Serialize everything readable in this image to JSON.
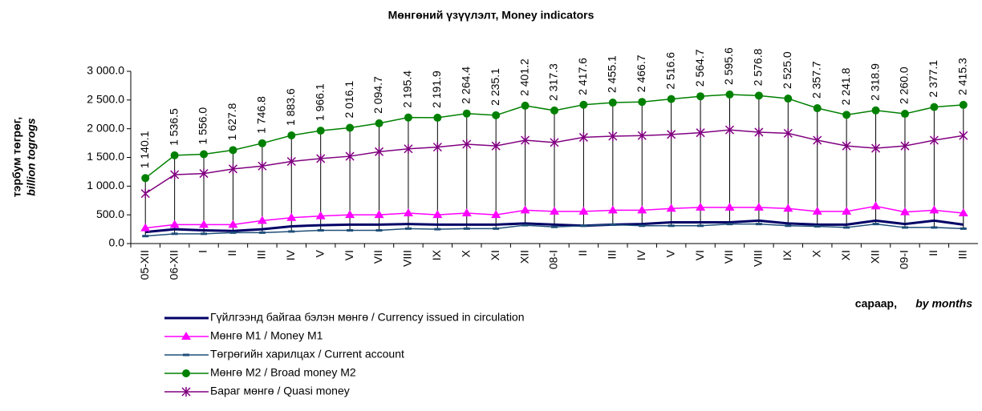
{
  "chart_data": {
    "type": "line",
    "title": "Мөнгөний үзүүлэлт, Money indicators",
    "y_label": "тэрбум төгрөг,",
    "y_label_2": "billion togrogs",
    "x_label": "сараар,",
    "x_label_2": "by months",
    "categories": [
      "05-XII",
      "06-XII",
      "I",
      "II",
      "III",
      "IV",
      "V",
      "VI",
      "VII",
      "VIII",
      "IX",
      "X",
      "XI",
      "XII",
      "08-I",
      "II",
      "III",
      "IV",
      "V",
      "VI",
      "VII",
      "VIII",
      "IX",
      "X",
      "XI",
      "XII",
      "09-I",
      "II",
      "III"
    ],
    "ylim": [
      0,
      3000
    ],
    "yticks": [
      {
        "value": 0,
        "label": "0.0"
      },
      {
        "value": 500,
        "label": "500.0"
      },
      {
        "value": 1000,
        "label": "1 000.0"
      },
      {
        "value": 1500,
        "label": "1 500.0"
      },
      {
        "value": 2000,
        "label": "2 000.0"
      },
      {
        "value": 2500,
        "label": "2 500.0"
      },
      {
        "value": 3000,
        "label": "3 000.0"
      }
    ],
    "series": [
      {
        "name": "Гүйлгээнд   байгаа бэлэн мөнгө / Currency issued  in circulation",
        "color": "#000066",
        "marker": "none",
        "values": [
          200,
          250,
          230,
          220,
          250,
          300,
          320,
          330,
          330,
          340,
          330,
          330,
          330,
          350,
          330,
          310,
          330,
          340,
          370,
          370,
          370,
          400,
          350,
          330,
          330,
          400,
          340,
          400,
          330
        ]
      },
      {
        "name": " Мөнгө М1 /  Money M1",
        "color": "#ff00ff",
        "marker": "triangle",
        "values": [
          270,
          330,
          330,
          330,
          400,
          450,
          480,
          500,
          500,
          530,
          500,
          530,
          500,
          580,
          560,
          560,
          580,
          580,
          610,
          630,
          630,
          630,
          610,
          560,
          560,
          650,
          550,
          580,
          530
        ]
      },
      {
        "name": "Төгрөгийн харилцах / Current account",
        "color": "#1f4e79",
        "marker": "dash",
        "values": [
          130,
          170,
          170,
          190,
          190,
          210,
          230,
          230,
          230,
          260,
          250,
          260,
          260,
          320,
          290,
          310,
          330,
          310,
          310,
          310,
          340,
          340,
          310,
          300,
          280,
          340,
          280,
          280,
          260
        ]
      },
      {
        "name": "  Мөнгө М2 /   Broad money M2",
        "color": "#008000",
        "marker": "circle",
        "values": [
          1140.1,
          1536.5,
          1556.0,
          1627.8,
          1746.8,
          1883.6,
          1966.1,
          2016.1,
          2094.7,
          2195.4,
          2191.9,
          2264.4,
          2235.1,
          2401.2,
          2317.3,
          2417.6,
          2455.1,
          2466.7,
          2516.6,
          2564.7,
          2595.6,
          2576.8,
          2525.0,
          2357.7,
          2241.8,
          2318.9,
          2260.0,
          2377.1,
          2415.3
        ],
        "value_labels": [
          "1 140.1",
          "1 536.5",
          "1 556.0",
          "1 627.8",
          "1 746.8",
          "1 883.6",
          "1 966.1",
          "2 016.1",
          "2 094.7",
          "2 195.4",
          "2 191.9",
          "2 264.4",
          "2 235.1",
          "2 401.2",
          "2 317.3",
          "2 417.6",
          "2 455.1",
          "2 466.7",
          "2 516.6",
          "2 564.7",
          "2 595.6",
          "2 576.8",
          "2 525.0",
          "2 357.7",
          "2 241.8",
          "2 318.9",
          "2 260.0",
          "2 377.1",
          "2 415.3"
        ]
      },
      {
        "name": "Бараг мөнгө / Quasi money",
        "color": "#800080",
        "marker": "star",
        "values": [
          870,
          1200,
          1220,
          1300,
          1350,
          1430,
          1480,
          1520,
          1600,
          1650,
          1680,
          1730,
          1700,
          1800,
          1760,
          1850,
          1870,
          1880,
          1900,
          1930,
          1980,
          1940,
          1920,
          1800,
          1700,
          1660,
          1700,
          1800,
          1880
        ]
      }
    ]
  }
}
